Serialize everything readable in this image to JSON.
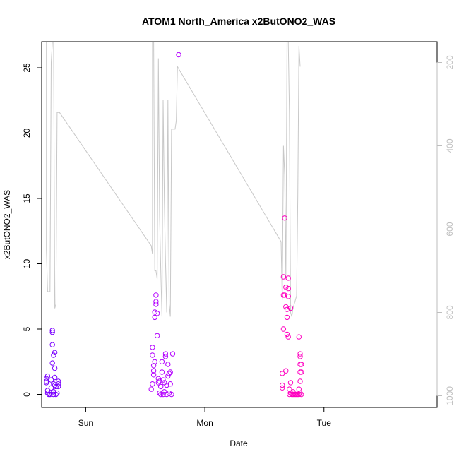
{
  "chart_data": {
    "type": "scatter",
    "title": "ATOM1 North_America x2ButONO2_WAS",
    "xlabel": "Date",
    "ylabel": "x2ButONO2_WAS",
    "x_ticks": [
      "Sun",
      "Mon",
      "Tue"
    ],
    "y_ticks": [
      "0",
      "5",
      "10",
      "15",
      "20",
      "25"
    ],
    "y_right_ticks": [
      "200",
      "400",
      "600",
      "800",
      "1000"
    ],
    "x_range_days": [
      -0.37,
      2.95
    ],
    "ylim": [
      -1,
      27
    ],
    "y_right_lim": [
      1028,
      150
    ],
    "y_right_reversed": true,
    "grid": false,
    "colors": {
      "axis": "#000000",
      "right_axis": "#bebebe",
      "pressure_line": "#c8c8c8"
    },
    "points": [
      {
        "x": -0.33,
        "y": 1.0,
        "c": "#7a00ff"
      },
      {
        "x": -0.33,
        "y": 1.2,
        "c": "#7a00ff"
      },
      {
        "x": -0.33,
        "y": 0.9,
        "c": "#7a00ff"
      },
      {
        "x": -0.32,
        "y": 1.4,
        "c": "#7a00ff"
      },
      {
        "x": -0.32,
        "y": 0.1,
        "c": "#7a00ff"
      },
      {
        "x": -0.32,
        "y": 0.3,
        "c": "#7a00ff"
      },
      {
        "x": -0.31,
        "y": 0.0,
        "c": "#7a00ff"
      },
      {
        "x": -0.3,
        "y": 0.0,
        "c": "#7a00ff"
      },
      {
        "x": -0.29,
        "y": 1.1,
        "c": "#7a00ff"
      },
      {
        "x": -0.29,
        "y": 0.5,
        "c": "#7a00ff"
      },
      {
        "x": -0.28,
        "y": 4.9,
        "c": "#7a00ff"
      },
      {
        "x": -0.28,
        "y": 4.75,
        "c": "#7a00ff"
      },
      {
        "x": -0.28,
        "y": 3.8,
        "c": "#7a00ff"
      },
      {
        "x": -0.28,
        "y": 2.4,
        "c": "#7a00ff"
      },
      {
        "x": -0.27,
        "y": 3.0,
        "c": "#7a00ff"
      },
      {
        "x": -0.27,
        "y": 0.8,
        "c": "#7a00ff"
      },
      {
        "x": -0.27,
        "y": 0.2,
        "c": "#7a00ff"
      },
      {
        "x": -0.27,
        "y": 0.0,
        "c": "#7a00ff"
      },
      {
        "x": -0.26,
        "y": 3.2,
        "c": "#7a00ff"
      },
      {
        "x": -0.26,
        "y": 2.0,
        "c": "#7a00ff"
      },
      {
        "x": -0.26,
        "y": 1.3,
        "c": "#7a00ff"
      },
      {
        "x": -0.26,
        "y": 0.7,
        "c": "#7a00ff"
      },
      {
        "x": -0.25,
        "y": 0.6,
        "c": "#7a00ff"
      },
      {
        "x": -0.25,
        "y": 0.0,
        "c": "#7a00ff"
      },
      {
        "x": -0.24,
        "y": 0.1,
        "c": "#7a00ff"
      },
      {
        "x": -0.23,
        "y": 0.8,
        "c": "#7a00ff"
      },
      {
        "x": -0.23,
        "y": 1.0,
        "c": "#7a00ff"
      },
      {
        "x": -0.23,
        "y": 0.6,
        "c": "#7a00ff"
      },
      {
        "x": 0.55,
        "y": 0.4,
        "c": "#b300ff"
      },
      {
        "x": 0.56,
        "y": 0.8,
        "c": "#b300ff"
      },
      {
        "x": 0.56,
        "y": 3.6,
        "c": "#b300ff"
      },
      {
        "x": 0.56,
        "y": 3.0,
        "c": "#b300ff"
      },
      {
        "x": 0.57,
        "y": 1.8,
        "c": "#b300ff"
      },
      {
        "x": 0.57,
        "y": 1.5,
        "c": "#b300ff"
      },
      {
        "x": 0.57,
        "y": 2.2,
        "c": "#b300ff"
      },
      {
        "x": 0.58,
        "y": 2.5,
        "c": "#b300ff"
      },
      {
        "x": 0.58,
        "y": 5.9,
        "c": "#b300ff"
      },
      {
        "x": 0.58,
        "y": 6.3,
        "c": "#b300ff"
      },
      {
        "x": 0.59,
        "y": 6.9,
        "c": "#b300ff"
      },
      {
        "x": 0.59,
        "y": 7.6,
        "c": "#b300ff"
      },
      {
        "x": 0.59,
        "y": 7.1,
        "c": "#b300ff"
      },
      {
        "x": 0.6,
        "y": 6.2,
        "c": "#b300ff"
      },
      {
        "x": 0.6,
        "y": 4.5,
        "c": "#b300ff"
      },
      {
        "x": 0.61,
        "y": 1.2,
        "c": "#b300ff"
      },
      {
        "x": 0.61,
        "y": 0.9,
        "c": "#b300ff"
      },
      {
        "x": 0.62,
        "y": 0.1,
        "c": "#b300ff"
      },
      {
        "x": 0.62,
        "y": 1.0,
        "c": "#b300ff"
      },
      {
        "x": 0.63,
        "y": 0.0,
        "c": "#b300ff"
      },
      {
        "x": 0.63,
        "y": 0.6,
        "c": "#b300ff"
      },
      {
        "x": 0.64,
        "y": 2.5,
        "c": "#b300ff"
      },
      {
        "x": 0.64,
        "y": 1.7,
        "c": "#b300ff"
      },
      {
        "x": 0.65,
        "y": 0.0,
        "c": "#b300ff"
      },
      {
        "x": 0.65,
        "y": 1.1,
        "c": "#b300ff"
      },
      {
        "x": 0.66,
        "y": 0.2,
        "c": "#b300ff"
      },
      {
        "x": 0.66,
        "y": 0.9,
        "c": "#b300ff"
      },
      {
        "x": 0.67,
        "y": 3.1,
        "c": "#b300ff"
      },
      {
        "x": 0.67,
        "y": 2.9,
        "c": "#b300ff"
      },
      {
        "x": 0.68,
        "y": 0.0,
        "c": "#b300ff"
      },
      {
        "x": 0.68,
        "y": 0.7,
        "c": "#b300ff"
      },
      {
        "x": 0.69,
        "y": 1.4,
        "c": "#b300ff"
      },
      {
        "x": 0.69,
        "y": 2.3,
        "c": "#b300ff"
      },
      {
        "x": 0.7,
        "y": 0.1,
        "c": "#b300ff"
      },
      {
        "x": 0.7,
        "y": 1.6,
        "c": "#b300ff"
      },
      {
        "x": 0.71,
        "y": 1.7,
        "c": "#b300ff"
      },
      {
        "x": 0.71,
        "y": 0.8,
        "c": "#b300ff"
      },
      {
        "x": 0.72,
        "y": 0.0,
        "c": "#b300ff"
      },
      {
        "x": 0.73,
        "y": 3.1,
        "c": "#b300ff"
      },
      {
        "x": 0.78,
        "y": 26.0,
        "c": "#b300ff"
      },
      {
        "x": 1.65,
        "y": 0.7,
        "c": "#ff00c0"
      },
      {
        "x": 1.65,
        "y": 0.5,
        "c": "#ff00c0"
      },
      {
        "x": 1.65,
        "y": 1.6,
        "c": "#ff00c0"
      },
      {
        "x": 1.66,
        "y": 9.0,
        "c": "#ff00c0"
      },
      {
        "x": 1.66,
        "y": 7.6,
        "c": "#ff00c0"
      },
      {
        "x": 1.66,
        "y": 5.0,
        "c": "#ff00c0"
      },
      {
        "x": 1.67,
        "y": 13.5,
        "c": "#ff00c0"
      },
      {
        "x": 1.67,
        "y": 7.6,
        "c": "#ff00c0"
      },
      {
        "x": 1.68,
        "y": 8.2,
        "c": "#ff00c0"
      },
      {
        "x": 1.68,
        "y": 6.7,
        "c": "#ff00c0"
      },
      {
        "x": 1.68,
        "y": 1.8,
        "c": "#ff00c0"
      },
      {
        "x": 1.69,
        "y": 6.5,
        "c": "#ff00c0"
      },
      {
        "x": 1.69,
        "y": 5.9,
        "c": "#ff00c0"
      },
      {
        "x": 1.69,
        "y": 4.6,
        "c": "#ff00c0"
      },
      {
        "x": 1.7,
        "y": 8.9,
        "c": "#ff00c0"
      },
      {
        "x": 1.7,
        "y": 8.1,
        "c": "#ff00c0"
      },
      {
        "x": 1.7,
        "y": 7.5,
        "c": "#ff00c0"
      },
      {
        "x": 1.7,
        "y": 4.4,
        "c": "#ff00c0"
      },
      {
        "x": 1.71,
        "y": 0.4,
        "c": "#ff00c0"
      },
      {
        "x": 1.71,
        "y": 0.0,
        "c": "#ff00c0"
      },
      {
        "x": 1.72,
        "y": 6.6,
        "c": "#ff00c0"
      },
      {
        "x": 1.72,
        "y": 0.1,
        "c": "#ff00c0"
      },
      {
        "x": 1.72,
        "y": 0.9,
        "c": "#ff00c0"
      },
      {
        "x": 1.73,
        "y": 0.0,
        "c": "#ff00c0"
      },
      {
        "x": 1.74,
        "y": 0.0,
        "c": "#ff00c0"
      },
      {
        "x": 1.74,
        "y": 0.2,
        "c": "#ff00c0"
      },
      {
        "x": 1.75,
        "y": 0.0,
        "c": "#ff00c0"
      },
      {
        "x": 1.76,
        "y": 0.0,
        "c": "#ff00c0"
      },
      {
        "x": 1.77,
        "y": 0.0,
        "c": "#ff00c0"
      },
      {
        "x": 1.78,
        "y": 0.0,
        "c": "#ff00c0"
      },
      {
        "x": 1.79,
        "y": 0.0,
        "c": "#ff00c0"
      },
      {
        "x": 1.79,
        "y": 4.4,
        "c": "#ff00c0"
      },
      {
        "x": 1.79,
        "y": 0.4,
        "c": "#ff00c0"
      },
      {
        "x": 1.8,
        "y": 2.9,
        "c": "#ff00c0"
      },
      {
        "x": 1.8,
        "y": 3.1,
        "c": "#ff00c0"
      },
      {
        "x": 1.8,
        "y": 2.3,
        "c": "#ff00c0"
      },
      {
        "x": 1.8,
        "y": 1.7,
        "c": "#ff00c0"
      },
      {
        "x": 1.8,
        "y": 1.0,
        "c": "#ff00c0"
      },
      {
        "x": 1.8,
        "y": 0.1,
        "c": "#ff00c0"
      },
      {
        "x": 1.81,
        "y": 1.7,
        "c": "#ff00c0"
      },
      {
        "x": 1.81,
        "y": 2.3,
        "c": "#ff00c0"
      },
      {
        "x": 1.81,
        "y": 0.0,
        "c": "#ff00c0"
      }
    ],
    "pressure_line": [
      [
        -0.33,
        150
      ],
      [
        -0.33,
        650
      ],
      [
        -0.32,
        750
      ],
      [
        -0.3,
        750
      ],
      [
        -0.29,
        200
      ],
      [
        -0.28,
        150
      ],
      [
        -0.27,
        150
      ],
      [
        -0.26,
        790
      ],
      [
        -0.25,
        780
      ],
      [
        -0.24,
        320
      ],
      [
        -0.22,
        320
      ],
      [
        0.55,
        640
      ],
      [
        0.56,
        660
      ],
      [
        0.56,
        150
      ],
      [
        0.57,
        150
      ],
      [
        0.58,
        700
      ],
      [
        0.59,
        700
      ],
      [
        0.6,
        720
      ],
      [
        0.61,
        190
      ],
      [
        0.62,
        570
      ],
      [
        0.63,
        700
      ],
      [
        0.64,
        810
      ],
      [
        0.65,
        290
      ],
      [
        0.66,
        530
      ],
      [
        0.67,
        680
      ],
      [
        0.68,
        800
      ],
      [
        0.69,
        290
      ],
      [
        0.7,
        780
      ],
      [
        0.71,
        810
      ],
      [
        0.72,
        360
      ],
      [
        0.75,
        360
      ],
      [
        0.76,
        340
      ],
      [
        0.77,
        210
      ],
      [
        1.64,
        630
      ],
      [
        1.65,
        770
      ],
      [
        1.66,
        400
      ],
      [
        1.67,
        470
      ],
      [
        1.68,
        720
      ],
      [
        1.69,
        130
      ],
      [
        1.7,
        150
      ],
      [
        1.71,
        320
      ],
      [
        1.72,
        800
      ],
      [
        1.73,
        810
      ],
      [
        1.74,
        790
      ],
      [
        1.77,
        760
      ],
      [
        1.78,
        520
      ],
      [
        1.79,
        160
      ],
      [
        1.8,
        210
      ]
    ]
  }
}
